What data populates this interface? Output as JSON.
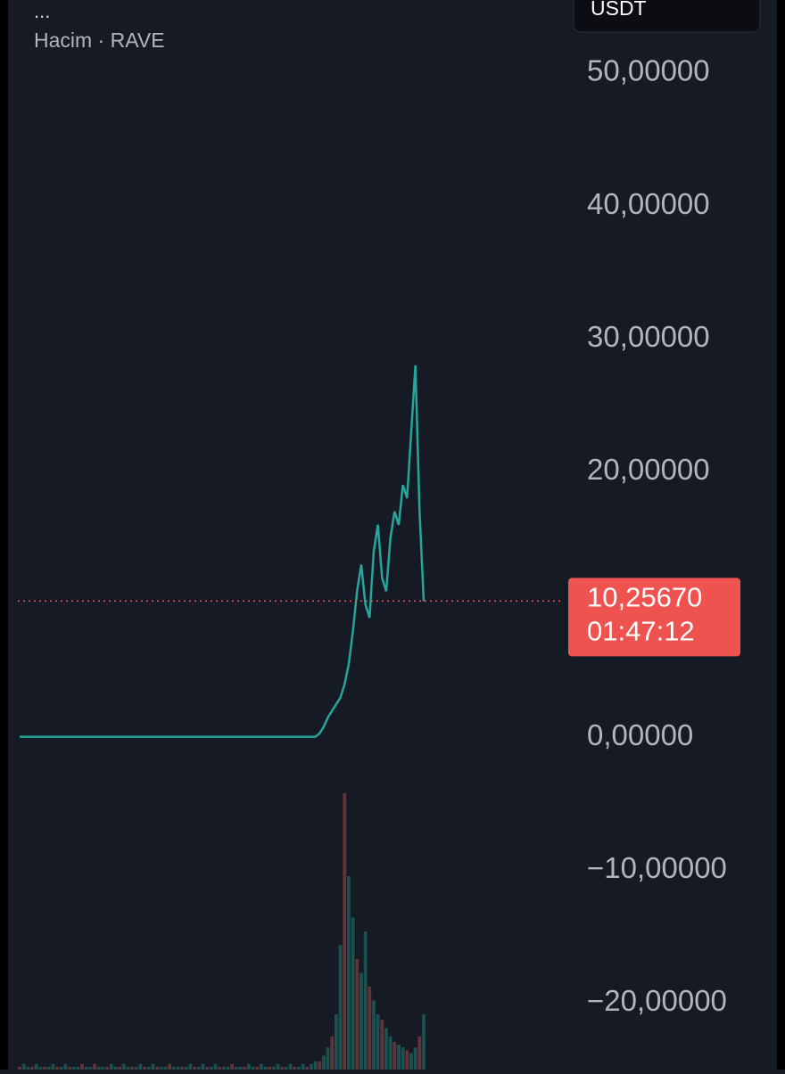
{
  "header": {
    "menu": "...",
    "legend": "Hacim · RAVE",
    "currency": "USDT"
  },
  "chart_data": {
    "type": "line",
    "color": "#26a69a",
    "values": [
      0.05,
      0.05,
      0.05,
      0.05,
      0.05,
      0.05,
      0.05,
      0.05,
      0.05,
      0.05,
      0.05,
      0.05,
      0.05,
      0.05,
      0.05,
      0.05,
      0.05,
      0.05,
      0.05,
      0.05,
      0.05,
      0.05,
      0.05,
      0.05,
      0.05,
      0.05,
      0.05,
      0.05,
      0.05,
      0.05,
      0.05,
      0.05,
      0.05,
      0.05,
      0.05,
      0.05,
      0.05,
      0.05,
      0.05,
      0.05,
      0.05,
      0.05,
      0.05,
      0.05,
      0.05,
      0.05,
      0.05,
      0.05,
      0.05,
      0.05,
      0.05,
      0.05,
      0.05,
      0.05,
      0.05,
      0.05,
      0.05,
      0.05,
      0.05,
      0.05,
      0.05,
      0.05,
      0.05,
      0.05,
      0.05,
      0.05,
      0.05,
      0.05,
      0.05,
      0.05,
      0.05,
      0.05,
      0.3,
      0.8,
      1.5,
      2,
      2.5,
      3,
      4,
      5.5,
      8,
      11,
      13,
      10,
      9,
      14,
      16,
      12,
      11,
      15,
      17,
      16,
      19,
      18,
      23,
      28,
      17,
      10.2567
    ],
    "volume": [
      1,
      2,
      1,
      1,
      2,
      1,
      1,
      1,
      2,
      1,
      1,
      2,
      1,
      1,
      1,
      2,
      1,
      1,
      2,
      1,
      1,
      1,
      2,
      1,
      1,
      2,
      1,
      1,
      1,
      2,
      1,
      1,
      2,
      1,
      1,
      1,
      2,
      1,
      1,
      1,
      1,
      2,
      1,
      1,
      2,
      1,
      1,
      2,
      1,
      1,
      1,
      2,
      1,
      1,
      1,
      2,
      1,
      1,
      2,
      1,
      1,
      1,
      2,
      1,
      1,
      2,
      1,
      1,
      2,
      1,
      2,
      3,
      3,
      5,
      8,
      12,
      20,
      45,
      100,
      70,
      55,
      40,
      35,
      50,
      30,
      25,
      20,
      18,
      15,
      12,
      10,
      9,
      8,
      7,
      6,
      8,
      12,
      20
    ],
    "ylim": [
      -25,
      55.5
    ],
    "yticks": [
      {
        "value": 50,
        "label": "50,00000"
      },
      {
        "value": 40,
        "label": "40,00000"
      },
      {
        "value": 30,
        "label": "30,00000"
      },
      {
        "value": 20,
        "label": "20,00000"
      },
      {
        "value": 0,
        "label": "0,00000"
      },
      {
        "value": -10,
        "label": "−10,00000"
      },
      {
        "value": -20,
        "label": "−20,00000"
      }
    ],
    "last_price": {
      "value": 10.2567,
      "label": "10,25670"
    },
    "countdown": "01:47:12"
  }
}
